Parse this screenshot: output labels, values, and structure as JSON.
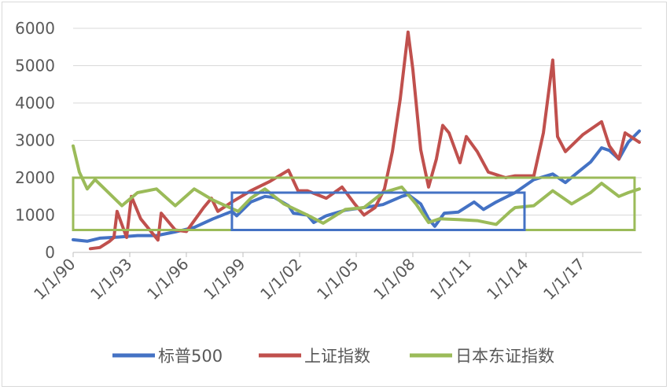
{
  "chart_data": {
    "type": "line",
    "title": "",
    "xlabel": "",
    "ylabel": "",
    "ylim": [
      0,
      6000
    ],
    "y_ticks": [
      "0",
      "1000",
      "2000",
      "3000",
      "4000",
      "5000",
      "6000"
    ],
    "x_ticks": [
      "1/1/90",
      "1/1/93",
      "1/1/96",
      "1/1/99",
      "1/1/02",
      "1/1/05",
      "1/1/08",
      "1/1/11",
      "1/1/14",
      "1/1/17"
    ],
    "xlim": [
      "1990-01-01",
      "2019-01-01"
    ],
    "grid": true,
    "legend_position": "bottom",
    "series": [
      {
        "name": "标普500",
        "color": "#4472c4",
        "points": [
          [
            "1990-01-01",
            340
          ],
          [
            "1990-10-01",
            300
          ],
          [
            "1991-06-01",
            380
          ],
          [
            "1992-06-01",
            410
          ],
          [
            "1993-06-01",
            450
          ],
          [
            "1994-06-01",
            450
          ],
          [
            "1995-06-01",
            550
          ],
          [
            "1996-06-01",
            670
          ],
          [
            "1997-06-01",
            900
          ],
          [
            "1998-06-01",
            1100
          ],
          [
            "1998-09-01",
            980
          ],
          [
            "1999-06-01",
            1350
          ],
          [
            "2000-03-01",
            1500
          ],
          [
            "2000-09-01",
            1470
          ],
          [
            "2001-06-01",
            1250
          ],
          [
            "2001-09-01",
            1050
          ],
          [
            "2002-06-01",
            1000
          ],
          [
            "2002-10-01",
            800
          ],
          [
            "2003-06-01",
            980
          ],
          [
            "2004-06-01",
            1130
          ],
          [
            "2005-06-01",
            1200
          ],
          [
            "2006-06-01",
            1280
          ],
          [
            "2007-06-01",
            1500
          ],
          [
            "2007-10-01",
            1550
          ],
          [
            "2008-06-01",
            1300
          ],
          [
            "2008-11-01",
            900
          ],
          [
            "2009-03-01",
            700
          ],
          [
            "2009-09-01",
            1050
          ],
          [
            "2010-06-01",
            1080
          ],
          [
            "2011-04-01",
            1350
          ],
          [
            "2011-10-01",
            1150
          ],
          [
            "2012-06-01",
            1350
          ],
          [
            "2013-06-01",
            1600
          ],
          [
            "2014-06-01",
            1950
          ],
          [
            "2015-06-01",
            2100
          ],
          [
            "2016-02-01",
            1870
          ],
          [
            "2016-10-01",
            2150
          ],
          [
            "2017-06-01",
            2420
          ],
          [
            "2018-01-01",
            2800
          ],
          [
            "2018-06-01",
            2730
          ],
          [
            "2018-12-01",
            2500
          ],
          [
            "2019-06-01",
            2950
          ],
          [
            "2020-01-01",
            3250
          ]
        ]
      },
      {
        "name": "上证指数",
        "color": "#c0504d",
        "points": [
          [
            "1990-12-01",
            100
          ],
          [
            "1991-06-01",
            130
          ],
          [
            "1991-12-01",
            290
          ],
          [
            "1992-03-01",
            400
          ],
          [
            "1992-05-01",
            1100
          ],
          [
            "1992-11-01",
            400
          ],
          [
            "1993-02-01",
            1500
          ],
          [
            "1993-08-01",
            900
          ],
          [
            "1994-07-01",
            330
          ],
          [
            "1994-09-01",
            1050
          ],
          [
            "1995-06-01",
            600
          ],
          [
            "1996-01-01",
            560
          ],
          [
            "1996-12-01",
            1200
          ],
          [
            "1997-05-01",
            1450
          ],
          [
            "1997-09-01",
            1100
          ],
          [
            "1998-06-01",
            1350
          ],
          [
            "1999-06-01",
            1650
          ],
          [
            "2000-06-01",
            1900
          ],
          [
            "2001-06-01",
            2200
          ],
          [
            "2001-12-01",
            1650
          ],
          [
            "2002-06-01",
            1650
          ],
          [
            "2003-06-01",
            1450
          ],
          [
            "2004-04-01",
            1750
          ],
          [
            "2004-12-01",
            1300
          ],
          [
            "2005-06-01",
            1000
          ],
          [
            "2006-01-01",
            1200
          ],
          [
            "2006-07-01",
            1700
          ],
          [
            "2006-12-01",
            2700
          ],
          [
            "2007-05-01",
            4100
          ],
          [
            "2007-10-01",
            5900
          ],
          [
            "2008-01-01",
            4900
          ],
          [
            "2008-06-01",
            2750
          ],
          [
            "2008-11-01",
            1750
          ],
          [
            "2009-04-01",
            2500
          ],
          [
            "2009-08-01",
            3400
          ],
          [
            "2009-12-01",
            3200
          ],
          [
            "2010-07-01",
            2400
          ],
          [
            "2010-11-01",
            3100
          ],
          [
            "2011-06-01",
            2700
          ],
          [
            "2012-01-01",
            2150
          ],
          [
            "2012-12-01",
            2000
          ],
          [
            "2013-06-01",
            2050
          ],
          [
            "2014-06-01",
            2050
          ],
          [
            "2014-12-01",
            3200
          ],
          [
            "2015-06-01",
            5150
          ],
          [
            "2015-09-01",
            3100
          ],
          [
            "2016-02-01",
            2700
          ],
          [
            "2017-01-01",
            3150
          ],
          [
            "2018-01-01",
            3500
          ],
          [
            "2018-06-01",
            2850
          ],
          [
            "2018-12-01",
            2500
          ],
          [
            "2019-04-01",
            3200
          ],
          [
            "2020-01-01",
            2950
          ]
        ]
      },
      {
        "name": "日本东证指数",
        "color": "#9bbb59",
        "points": [
          [
            "1990-01-01",
            2850
          ],
          [
            "1990-05-01",
            2150
          ],
          [
            "1990-10-01",
            1700
          ],
          [
            "1991-03-01",
            1950
          ],
          [
            "1992-08-01",
            1250
          ],
          [
            "1993-06-01",
            1600
          ],
          [
            "1994-06-01",
            1700
          ],
          [
            "1995-06-01",
            1250
          ],
          [
            "1996-06-01",
            1700
          ],
          [
            "1997-06-01",
            1400
          ],
          [
            "1998-10-01",
            1100
          ],
          [
            "1999-06-01",
            1450
          ],
          [
            "2000-03-01",
            1700
          ],
          [
            "2001-03-01",
            1300
          ],
          [
            "2002-06-01",
            1000
          ],
          [
            "2003-04-01",
            780
          ],
          [
            "2004-06-01",
            1150
          ],
          [
            "2005-06-01",
            1200
          ],
          [
            "2006-06-01",
            1600
          ],
          [
            "2007-06-01",
            1750
          ],
          [
            "2008-03-01",
            1300
          ],
          [
            "2008-11-01",
            800
          ],
          [
            "2009-06-01",
            900
          ],
          [
            "2010-06-01",
            880
          ],
          [
            "2011-06-01",
            850
          ],
          [
            "2012-06-01",
            750
          ],
          [
            "2013-03-01",
            1100
          ],
          [
            "2013-06-01",
            1200
          ],
          [
            "2014-06-01",
            1250
          ],
          [
            "2015-06-01",
            1650
          ],
          [
            "2016-06-01",
            1300
          ],
          [
            "2017-06-01",
            1600
          ],
          [
            "2018-01-01",
            1850
          ],
          [
            "2018-12-01",
            1500
          ],
          [
            "2019-06-01",
            1600
          ],
          [
            "2020-01-01",
            1700
          ]
        ]
      }
    ],
    "highlight_boxes": [
      {
        "color": "#9bbb59",
        "x": [
          "1990-01-01",
          "2019-10-01"
        ],
        "y": [
          600,
          2000
        ]
      },
      {
        "color": "#4472c4",
        "x": [
          "1998-06-01",
          "2013-12-01"
        ],
        "y": [
          600,
          1600
        ]
      }
    ]
  }
}
